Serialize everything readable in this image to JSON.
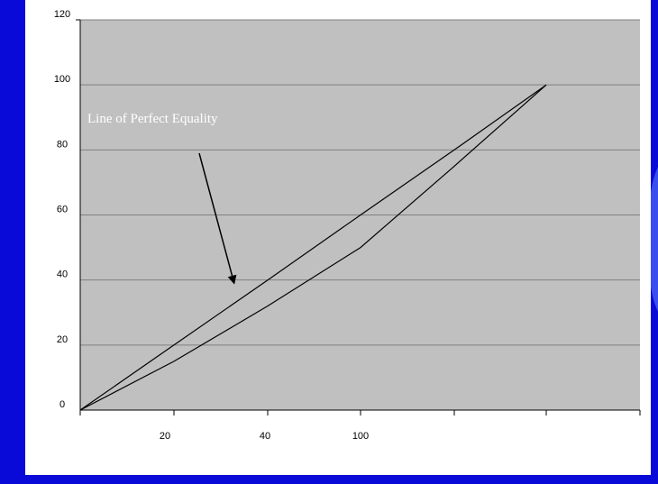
{
  "chart_data": {
    "type": "line",
    "title": "",
    "xlabel": "",
    "ylabel": "",
    "ylim": [
      0,
      120
    ],
    "yticks": [
      "0",
      "20",
      "40",
      "60",
      "80",
      "100",
      "120"
    ],
    "xtick_labels": [
      "20",
      "40",
      "100"
    ],
    "grid": true,
    "series": [
      {
        "name": "Line of Perfect Equality",
        "x": [
          0,
          20,
          40,
          60,
          80,
          100
        ],
        "y": [
          0,
          20,
          40,
          60,
          80,
          100
        ]
      },
      {
        "name": "",
        "x": [
          0,
          20,
          40,
          60,
          80,
          100
        ],
        "y": [
          0,
          15,
          32,
          50,
          75,
          100
        ]
      }
    ],
    "annotation": {
      "text": "Line of Perfect Equality",
      "points_to": {
        "x": 33,
        "y": 40
      }
    }
  },
  "colors": {
    "background": "#0a0ad8",
    "frame": "#ffffff",
    "plot_area": "#c0c0c0",
    "grid": "#808080",
    "line": "#000000",
    "annotation_text": "#ffffff"
  }
}
